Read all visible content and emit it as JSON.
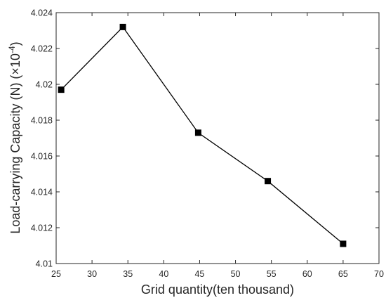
{
  "chart_data": {
    "type": "line",
    "title": "",
    "xlabel": "Grid quantity(ten thousand)",
    "ylabel": "Load-carrying Capacity (N) (×10",
    "ylabel_exponent": "-4",
    "ylabel_close": ")",
    "xlim": [
      25,
      70
    ],
    "ylim": [
      4.01,
      4.024
    ],
    "xticks": [
      25,
      30,
      35,
      40,
      45,
      50,
      55,
      60,
      65,
      70
    ],
    "yticks": [
      4.01,
      4.012,
      4.014,
      4.016,
      4.018,
      4.02,
      4.022,
      4.024
    ],
    "ytick_labels": [
      "4.01",
      "4.012",
      "4.014",
      "4.016",
      "4.018",
      "4.02",
      "4.022",
      "4.024"
    ],
    "grid": false,
    "marker": "square",
    "line_color": "#000000",
    "series": [
      {
        "x": [
          25.7,
          34.3,
          44.8,
          54.5,
          65
        ],
        "y": [
          4.0197,
          4.0232,
          4.0173,
          4.0146,
          4.0111
        ]
      }
    ]
  }
}
